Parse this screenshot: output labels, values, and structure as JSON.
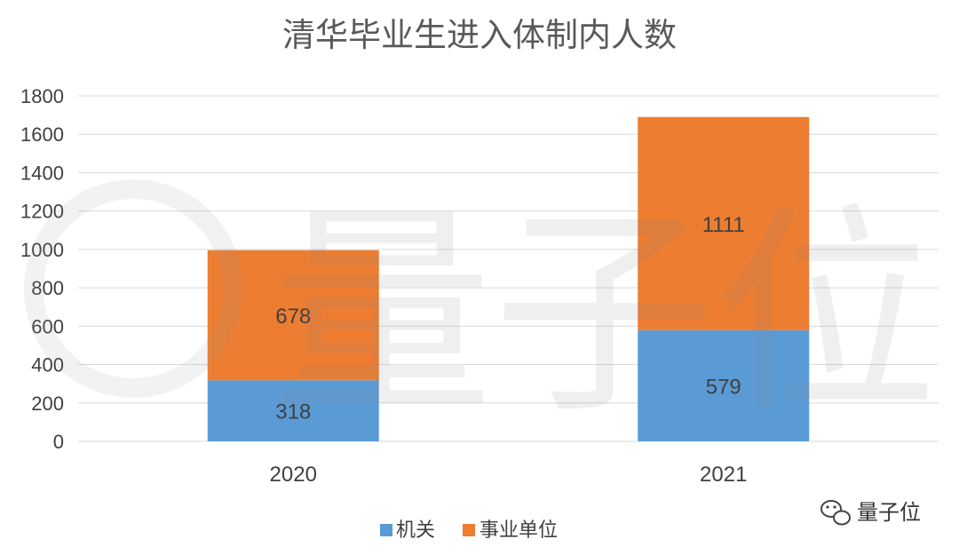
{
  "chart_data": {
    "type": "bar",
    "stacked": true,
    "title": "清华毕业生进入体制内人数",
    "categories": [
      "2020",
      "2021"
    ],
    "series": [
      {
        "name": "机关",
        "values": [
          318,
          579
        ],
        "color": "#5b9bd5"
      },
      {
        "name": "事业单位",
        "values": [
          678,
          1111
        ],
        "color": "#ed7d31"
      }
    ],
    "ylim": [
      0,
      1800
    ],
    "yticks": [
      0,
      200,
      400,
      600,
      800,
      1000,
      1200,
      1400,
      1600,
      1800
    ],
    "grid": true,
    "legend_position": "bottom",
    "xlabel": "",
    "ylabel": ""
  },
  "watermark": {
    "background_text": "量子位",
    "badge_text": "量子位",
    "badge_icon": "wechat-icon"
  }
}
